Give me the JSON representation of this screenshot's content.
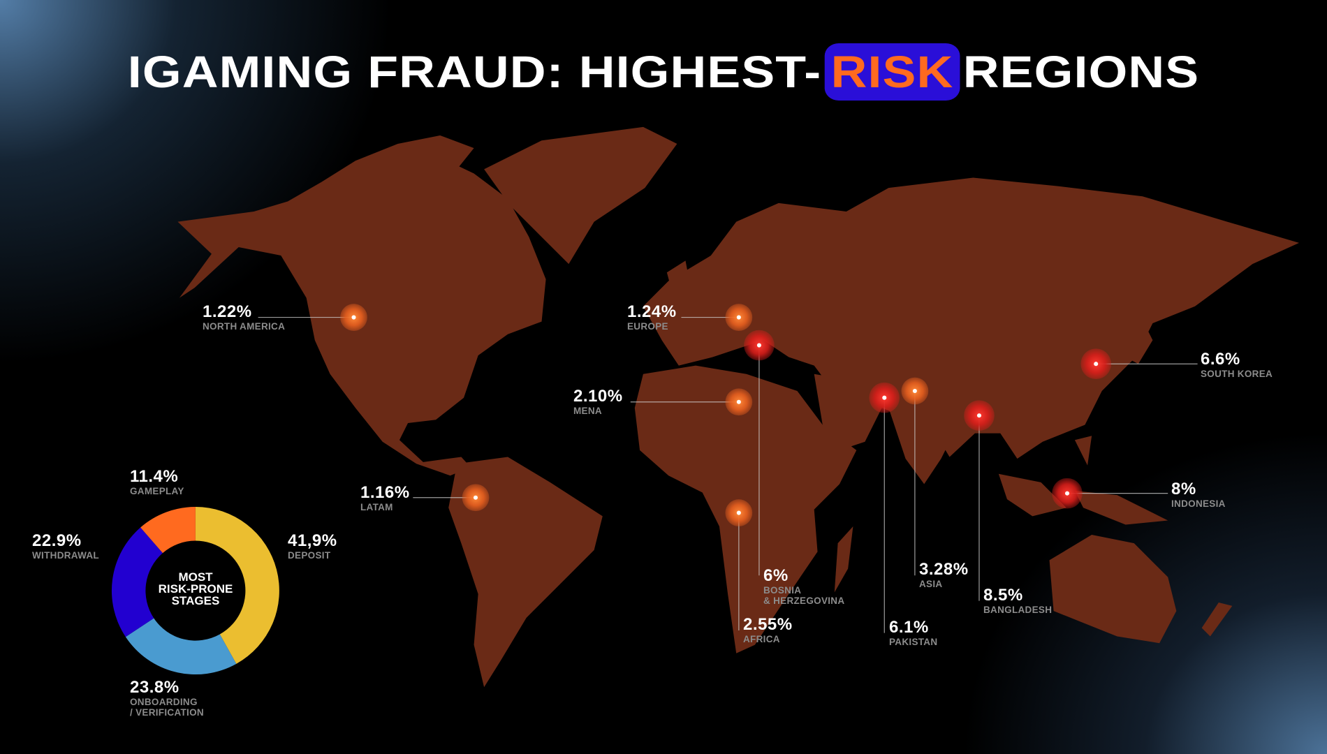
{
  "title": {
    "pre": "IGAMING FRAUD: HIGHEST-",
    "highlight": "RISK",
    "post": "REGIONS"
  },
  "colors": {
    "highlight_bg": "#2a0fd8",
    "highlight_text": "#ff6a1f",
    "marker_high": "#e0241f",
    "marker_mid": "#f26a2a",
    "land_top": "#6b5516",
    "land_bottom": "#6a2a16"
  },
  "regions": [
    {
      "value": "1.22%",
      "name": "NORTH AMERICA",
      "severity": "mid"
    },
    {
      "value": "1.24%",
      "name": "EUROPE",
      "severity": "mid"
    },
    {
      "value": "2.10%",
      "name": "MENA",
      "severity": "mid"
    },
    {
      "value": "1.16%",
      "name": "LATAM",
      "severity": "mid"
    },
    {
      "value": "6%",
      "name": "BOSNIA",
      "name2": "& HERZEGOVINA",
      "severity": "high"
    },
    {
      "value": "2.55%",
      "name": "AFRICA",
      "severity": "mid"
    },
    {
      "value": "6.1%",
      "name": "PAKISTAN",
      "severity": "high"
    },
    {
      "value": "3.28%",
      "name": "ASIA",
      "severity": "mid"
    },
    {
      "value": "8.5%",
      "name": "BANGLADESH",
      "severity": "high"
    },
    {
      "value": "6.6%",
      "name": "SOUTH KOREA",
      "severity": "high"
    },
    {
      "value": "8%",
      "name": "INDONESIA",
      "severity": "high"
    }
  ],
  "chart_data": {
    "type": "pie",
    "donut": true,
    "center_label": [
      "MOST",
      "RISK-PRONE",
      "STAGES"
    ],
    "slices": [
      {
        "label": "DEPOSIT",
        "value": 41.9,
        "display": "41,9%",
        "color": "#ebbe30"
      },
      {
        "label": "ONBOARDING / VERIFICATION",
        "label_line1": "ONBOARDING",
        "label_line2": "/ VERIFICATION",
        "value": 23.8,
        "display": "23.8%",
        "color": "#4a9bd0"
      },
      {
        "label": "WITHDRAWAL",
        "value": 22.9,
        "display": "22.9%",
        "color": "#2200d0"
      },
      {
        "label": "GAMEPLAY",
        "value": 11.4,
        "display": "11.4%",
        "color": "#ff6a1f"
      }
    ]
  }
}
